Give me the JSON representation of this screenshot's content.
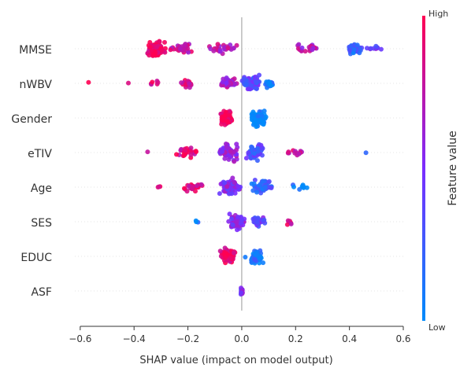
{
  "chart_data": {
    "type": "scatter",
    "subtype": "shap-beeswarm",
    "title": "",
    "xlabel": "SHAP value (impact on model output)",
    "xlim": [
      -0.62,
      0.6
    ],
    "x_ticks": [
      -0.6,
      -0.4,
      -0.2,
      0.0,
      0.2,
      0.4,
      0.6
    ],
    "x_tick_labels": [
      "−0.6",
      "−0.4",
      "−0.2",
      "0.0",
      "0.2",
      "0.4",
      "0.6"
    ],
    "features": [
      "MMSE",
      "nWBV",
      "Gender",
      "eTIV",
      "Age",
      "SES",
      "EDUC",
      "ASF"
    ],
    "colorbar": {
      "label": "Feature value",
      "high_label": "High",
      "low_label": "Low",
      "high_color": "#ff0052",
      "low_color": "#008bfb"
    },
    "series": [
      {
        "feature": "MMSE",
        "clusters": [
          {
            "x": -0.315,
            "spread": 0.045,
            "n": 90,
            "fv": 0.95
          },
          {
            "x": -0.22,
            "spread": 0.05,
            "n": 30,
            "fv": 0.8
          },
          {
            "x": -0.08,
            "spread": 0.08,
            "n": 28,
            "fv": 0.72
          },
          {
            "x": 0.25,
            "spread": 0.07,
            "n": 22,
            "fv": 0.68
          },
          {
            "x": 0.42,
            "spread": 0.04,
            "n": 40,
            "fv": 0.22
          },
          {
            "x": 0.5,
            "spread": 0.04,
            "n": 10,
            "fv": 0.45
          }
        ]
      },
      {
        "feature": "nWBV",
        "clusters": [
          {
            "x": -0.57,
            "spread": 0.005,
            "n": 1,
            "fv": 0.95
          },
          {
            "x": -0.42,
            "spread": 0.005,
            "n": 1,
            "fv": 0.95
          },
          {
            "x": -0.33,
            "spread": 0.03,
            "n": 6,
            "fv": 0.92
          },
          {
            "x": -0.2,
            "spread": 0.04,
            "n": 20,
            "fv": 0.88
          },
          {
            "x": -0.05,
            "spread": 0.04,
            "n": 40,
            "fv": 0.65
          },
          {
            "x": 0.03,
            "spread": 0.05,
            "n": 70,
            "fv": 0.35
          },
          {
            "x": 0.1,
            "spread": 0.03,
            "n": 25,
            "fv": 0.1
          }
        ]
      },
      {
        "feature": "Gender",
        "clusters": [
          {
            "x": -0.06,
            "spread": 0.03,
            "n": 80,
            "fv": 1.0
          },
          {
            "x": 0.06,
            "spread": 0.04,
            "n": 75,
            "fv": 0.0
          }
        ]
      },
      {
        "feature": "eTIV",
        "clusters": [
          {
            "x": -0.35,
            "spread": 0.005,
            "n": 1,
            "fv": 0.9
          },
          {
            "x": -0.2,
            "spread": 0.05,
            "n": 30,
            "fv": 0.9
          },
          {
            "x": -0.05,
            "spread": 0.05,
            "n": 60,
            "fv": 0.6
          },
          {
            "x": 0.05,
            "spread": 0.05,
            "n": 55,
            "fv": 0.3
          },
          {
            "x": 0.2,
            "spread": 0.05,
            "n": 12,
            "fv": 0.75
          },
          {
            "x": 0.46,
            "spread": 0.005,
            "n": 1,
            "fv": 0.05
          }
        ]
      },
      {
        "feature": "Age",
        "clusters": [
          {
            "x": -0.31,
            "spread": 0.01,
            "n": 3,
            "fv": 0.95
          },
          {
            "x": -0.18,
            "spread": 0.05,
            "n": 25,
            "fv": 0.9
          },
          {
            "x": -0.04,
            "spread": 0.05,
            "n": 70,
            "fv": 0.55
          },
          {
            "x": 0.07,
            "spread": 0.05,
            "n": 55,
            "fv": 0.25
          },
          {
            "x": 0.22,
            "spread": 0.04,
            "n": 10,
            "fv": 0.08
          }
        ]
      },
      {
        "feature": "SES",
        "clusters": [
          {
            "x": -0.17,
            "spread": 0.01,
            "n": 3,
            "fv": 0.05
          },
          {
            "x": -0.02,
            "spread": 0.04,
            "n": 60,
            "fv": 0.55
          },
          {
            "x": 0.07,
            "spread": 0.04,
            "n": 30,
            "fv": 0.4
          },
          {
            "x": 0.18,
            "spread": 0.02,
            "n": 6,
            "fv": 0.85
          }
        ]
      },
      {
        "feature": "EDUC",
        "clusters": [
          {
            "x": -0.05,
            "spread": 0.04,
            "n": 70,
            "fv": 0.95
          },
          {
            "x": 0.05,
            "spread": 0.04,
            "n": 60,
            "fv": 0.1
          }
        ]
      },
      {
        "feature": "ASF",
        "clusters": [
          {
            "x": 0.0,
            "spread": 0.005,
            "n": 20,
            "fv": 0.5
          }
        ]
      }
    ]
  }
}
